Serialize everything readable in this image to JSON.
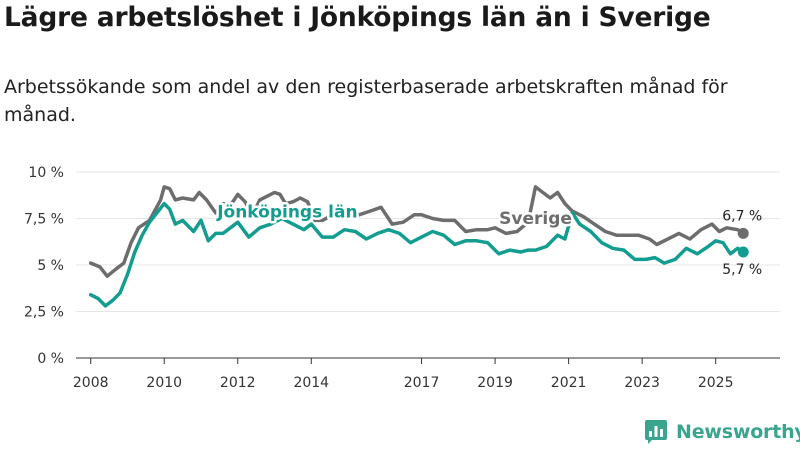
{
  "title": "Lägre arbetslöshet i Jönköpings län än i Sverige",
  "subtitle": "Arbetssökande som andel av den registerbaserade arbetskraften månad för månad.",
  "brand": {
    "name": "Newsworthy",
    "color": "#3aa58f",
    "icon": "bar-chart-logo-icon"
  },
  "colors": {
    "sverige": "#6d6d6d",
    "jonkoping": "#139d90",
    "grid": "#e6e6e6",
    "axis": "#333333"
  },
  "chart_data": {
    "type": "line",
    "title": "Lägre arbetslöshet i Jönköpings län än i Sverige",
    "xlabel": "",
    "ylabel": "",
    "xlim": [
      2007.6,
      2026.75
    ],
    "ylim": [
      0,
      10
    ],
    "y_ticks": [
      0,
      2.5,
      5,
      7.5,
      10
    ],
    "y_tick_labels": [
      "0 %",
      "2,5 %",
      "5 %",
      "7,5 %",
      "10 %"
    ],
    "x_ticks": [
      2008,
      2010,
      2012,
      2014,
      2017,
      2019,
      2021,
      2023,
      2025
    ],
    "x_tick_labels": [
      "2008",
      "2010",
      "2012",
      "2014",
      "2017",
      "2019",
      "2021",
      "2023",
      "2025"
    ],
    "series": [
      {
        "name": "Sverige",
        "label": "Sverige",
        "end_label": "6,7 %",
        "x": [
          2008.0,
          2008.25,
          2008.45,
          2008.7,
          2008.9,
          2009.1,
          2009.3,
          2009.6,
          2009.9,
          2010.0,
          2010.15,
          2010.3,
          2010.5,
          2010.8,
          2010.95,
          2011.15,
          2011.4,
          2011.6,
          2011.8,
          2012.0,
          2012.2,
          2012.4,
          2012.6,
          2012.8,
          2013.0,
          2013.15,
          2013.3,
          2013.5,
          2013.7,
          2013.9,
          2014.1,
          2014.3,
          2014.5,
          2014.7,
          2015.0,
          2015.3,
          2015.6,
          2015.9,
          2016.2,
          2016.5,
          2016.8,
          2017.0,
          2017.3,
          2017.6,
          2017.9,
          2018.2,
          2018.5,
          2018.8,
          2019.0,
          2019.3,
          2019.6,
          2019.9,
          2020.1,
          2020.3,
          2020.5,
          2020.7,
          2020.9,
          2021.1,
          2021.4,
          2021.7,
          2022.0,
          2022.3,
          2022.6,
          2022.9,
          2023.2,
          2023.4,
          2023.7,
          2024.0,
          2024.3,
          2024.6,
          2024.9,
          2025.1,
          2025.3,
          2025.6,
          2025.75
        ],
        "values": [
          5.1,
          4.9,
          4.4,
          4.8,
          5.1,
          6.2,
          7.0,
          7.4,
          8.5,
          9.2,
          9.1,
          8.5,
          8.6,
          8.5,
          8.9,
          8.5,
          7.8,
          8.3,
          8.2,
          8.8,
          8.4,
          7.7,
          8.5,
          8.7,
          8.9,
          8.8,
          8.3,
          8.4,
          8.6,
          8.4,
          7.4,
          7.4,
          7.6,
          8.0,
          8.1,
          7.7,
          7.9,
          8.1,
          7.2,
          7.3,
          7.7,
          7.7,
          7.5,
          7.4,
          7.4,
          6.8,
          6.9,
          6.9,
          7.0,
          6.7,
          6.8,
          7.3,
          9.2,
          8.9,
          8.6,
          8.9,
          8.3,
          7.9,
          7.6,
          7.2,
          6.8,
          6.6,
          6.6,
          6.6,
          6.4,
          6.1,
          6.4,
          6.7,
          6.4,
          6.9,
          7.2,
          6.8,
          7.0,
          6.9,
          6.7
        ]
      },
      {
        "name": "Jönköpings län",
        "label": "Jönköpings län",
        "end_label": "5,7 %",
        "x": [
          2008.0,
          2008.2,
          2008.4,
          2008.6,
          2008.8,
          2009.0,
          2009.2,
          2009.4,
          2009.6,
          2009.8,
          2010.0,
          2010.15,
          2010.3,
          2010.5,
          2010.8,
          2011.0,
          2011.2,
          2011.4,
          2011.6,
          2011.8,
          2012.0,
          2012.3,
          2012.6,
          2012.9,
          2013.2,
          2013.5,
          2013.8,
          2014.0,
          2014.3,
          2014.6,
          2014.9,
          2015.2,
          2015.5,
          2015.8,
          2016.1,
          2016.4,
          2016.7,
          2017.0,
          2017.3,
          2017.6,
          2017.9,
          2018.2,
          2018.5,
          2018.8,
          2019.1,
          2019.4,
          2019.7,
          2019.9,
          2020.1,
          2020.4,
          2020.7,
          2020.9,
          2021.1,
          2021.3,
          2021.6,
          2021.9,
          2022.2,
          2022.5,
          2022.8,
          2023.1,
          2023.35,
          2023.6,
          2023.9,
          2024.2,
          2024.5,
          2024.8,
          2025.0,
          2025.2,
          2025.4,
          2025.6,
          2025.75
        ],
        "values": [
          3.4,
          3.2,
          2.8,
          3.1,
          3.5,
          4.5,
          5.7,
          6.6,
          7.3,
          7.8,
          8.3,
          8.0,
          7.2,
          7.4,
          6.8,
          7.4,
          6.3,
          6.7,
          6.7,
          7.0,
          7.3,
          6.5,
          7.0,
          7.2,
          7.5,
          7.2,
          6.9,
          7.2,
          6.5,
          6.5,
          6.9,
          6.8,
          6.4,
          6.7,
          6.9,
          6.7,
          6.2,
          6.5,
          6.8,
          6.6,
          6.1,
          6.3,
          6.3,
          6.2,
          5.6,
          5.8,
          5.7,
          5.8,
          5.8,
          6.0,
          6.6,
          6.4,
          7.8,
          7.2,
          6.8,
          6.2,
          5.9,
          5.8,
          5.3,
          5.3,
          5.4,
          5.1,
          5.3,
          5.9,
          5.6,
          6.0,
          6.3,
          6.2,
          5.6,
          5.9,
          5.7
        ]
      }
    ],
    "annotations": [
      {
        "series": "Jönköpings län",
        "text": "Jönköpings län",
        "at_x": 2013.35,
        "at_y": 7.55
      },
      {
        "series": "Sverige",
        "text": "Sverige",
        "at_x": 2020.1,
        "at_y": 7.2
      }
    ]
  }
}
